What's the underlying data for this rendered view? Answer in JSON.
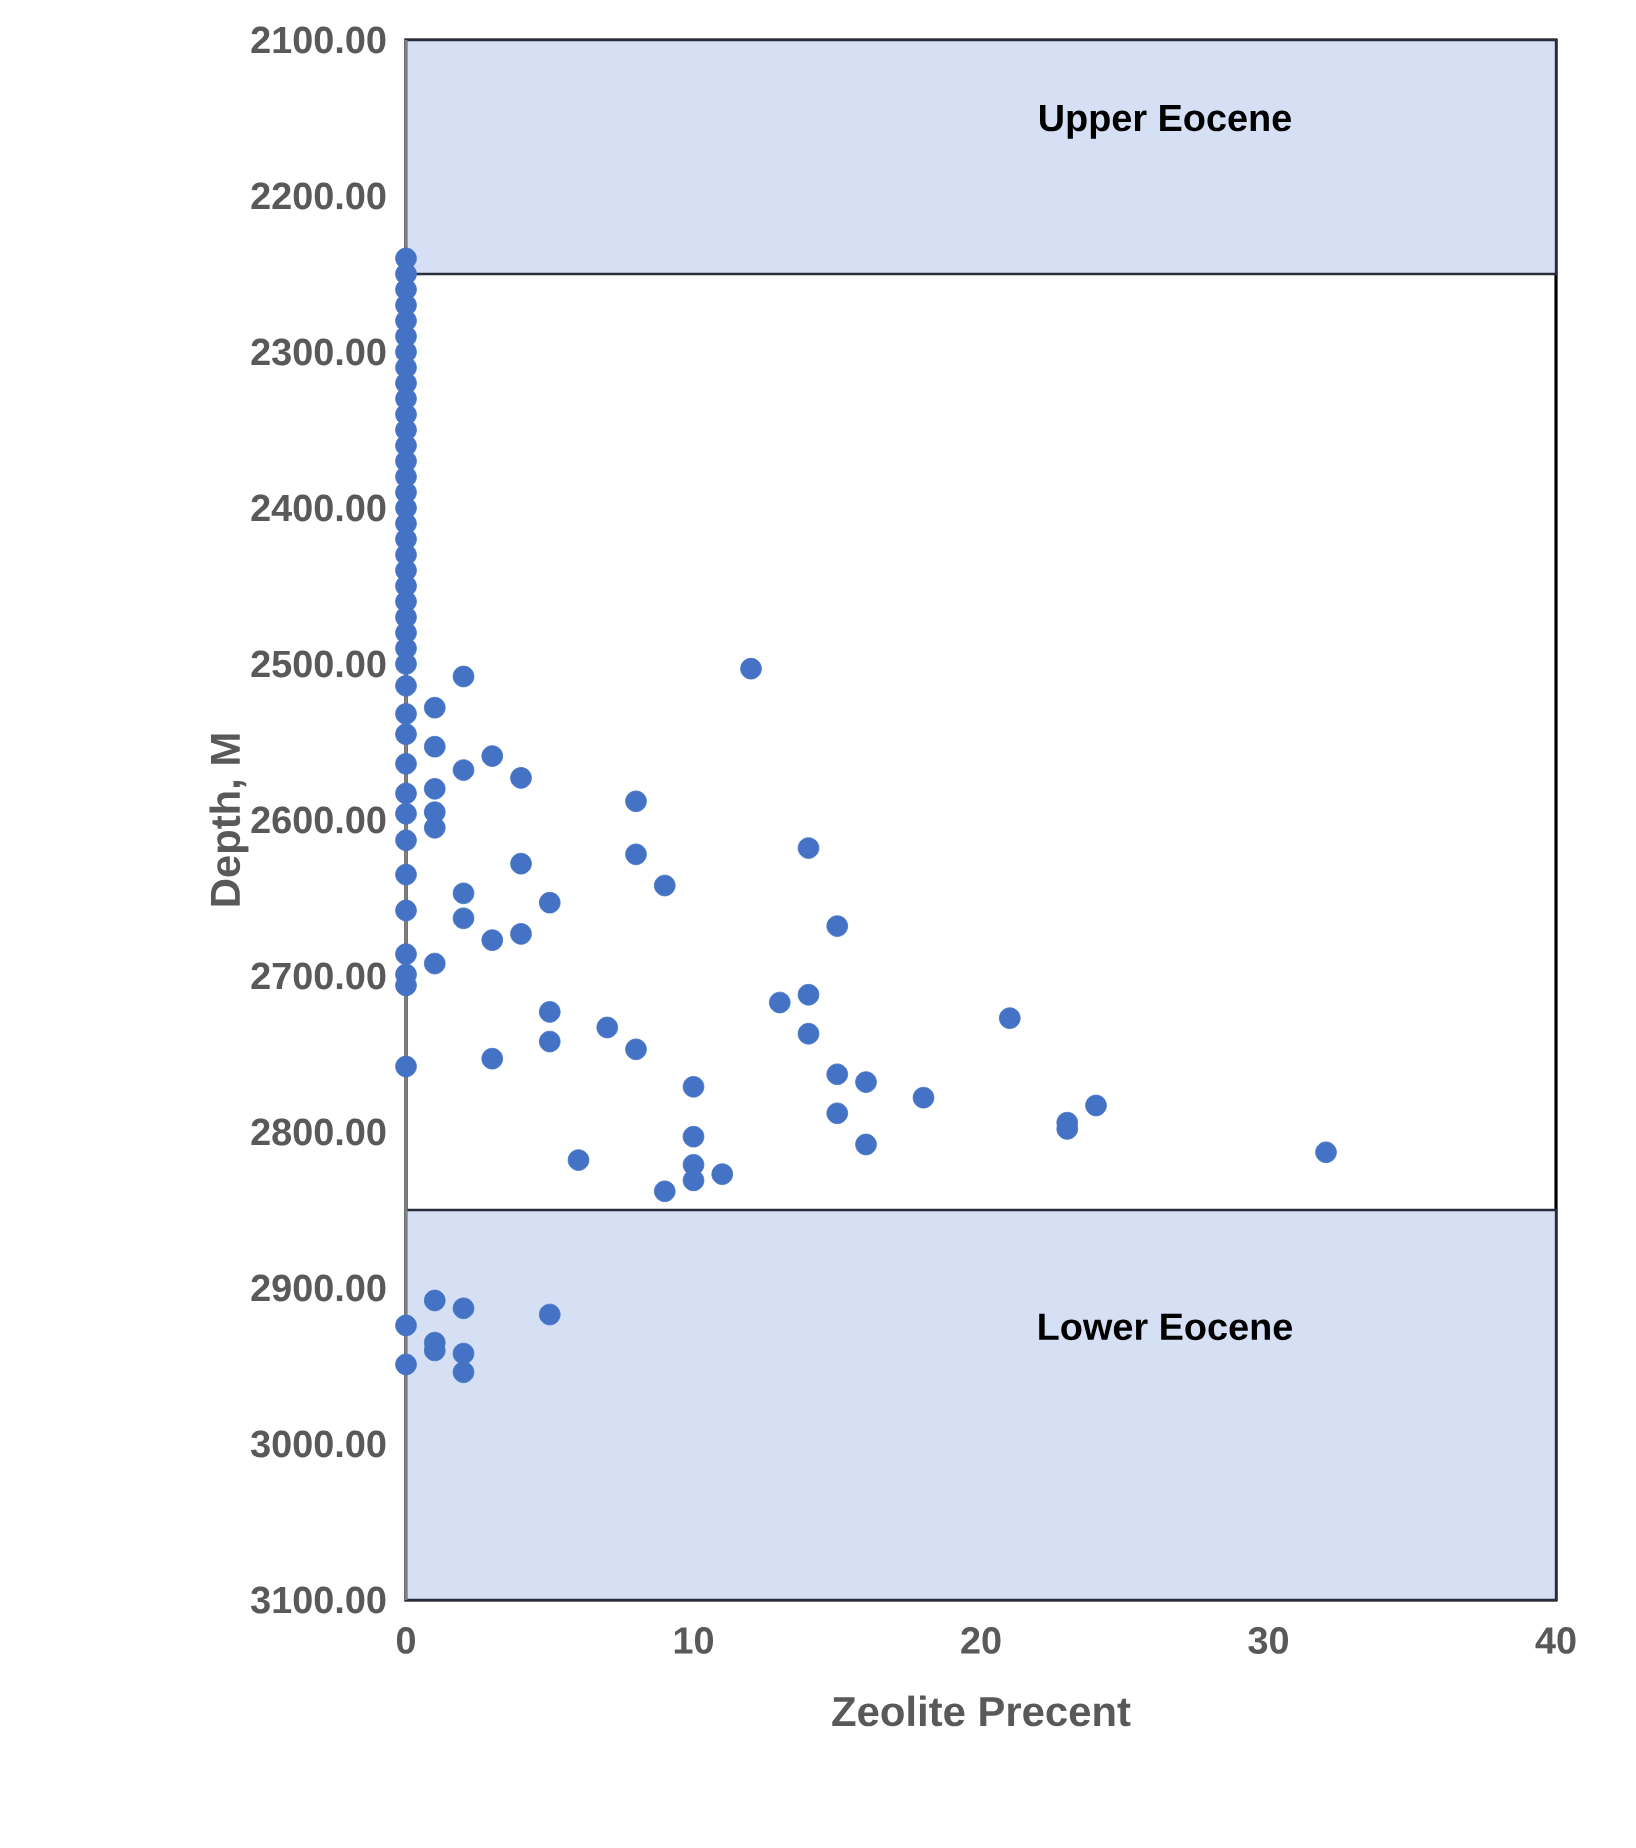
{
  "chart_data": {
    "type": "scatter",
    "xlabel": "Zeolite Precent",
    "ylabel": "Depth, M",
    "xlim": [
      0,
      40
    ],
    "xticks": [
      0,
      10,
      20,
      30,
      40
    ],
    "ylim": [
      3100,
      2100
    ],
    "yticks": [
      {
        "value": 2100,
        "label": "2100.00"
      },
      {
        "value": 2200,
        "label": "2200.00"
      },
      {
        "value": 2300,
        "label": "2300.00"
      },
      {
        "value": 2400,
        "label": "2400.00"
      },
      {
        "value": 2500,
        "label": "2500.00"
      },
      {
        "value": 2600,
        "label": "2600.00"
      },
      {
        "value": 2700,
        "label": "2700.00"
      },
      {
        "value": 2800,
        "label": "2800.00"
      },
      {
        "value": 2900,
        "label": "2900.00"
      },
      {
        "value": 3000,
        "label": "3000.00"
      },
      {
        "value": 3100,
        "label": "3100.00"
      }
    ],
    "marker": "circle",
    "grid": false,
    "bands": [
      {
        "axis": "y",
        "from": 2100,
        "to": 2250,
        "label": "Upper Eocene",
        "color": "#d6e0f5"
      },
      {
        "axis": "y",
        "from": 2850,
        "to": 3100,
        "label": "Lower Eocene",
        "color": "#d6e0f5"
      }
    ],
    "series": [
      {
        "color": "#4472c4",
        "x": [
          0,
          0,
          0,
          0,
          0,
          0,
          0,
          0,
          0,
          0,
          0,
          0,
          0,
          0,
          0,
          0,
          0,
          0,
          0,
          0,
          0,
          0,
          0,
          0,
          0,
          0,
          0,
          0,
          0,
          0,
          0,
          0,
          0,
          0,
          0,
          0,
          0,
          0,
          0,
          0,
          0,
          0,
          2,
          12,
          1,
          1,
          3,
          2,
          4,
          1,
          1,
          1,
          8,
          14,
          8,
          4,
          9,
          2,
          5,
          2,
          15,
          4,
          3,
          1,
          5,
          13,
          14,
          21,
          7,
          14,
          5,
          8,
          3,
          15,
          16,
          10,
          18,
          24,
          15,
          23,
          23,
          10,
          16,
          32,
          6,
          10,
          10,
          11,
          9,
          1,
          1,
          1,
          2,
          2,
          2,
          5
        ],
        "values": [
          2240,
          2250,
          2260,
          2270,
          2280,
          2290,
          2300,
          2310,
          2320,
          2330,
          2340,
          2350,
          2360,
          2370,
          2380,
          2390,
          2400,
          2410,
          2420,
          2430,
          2440,
          2450,
          2460,
          2470,
          2480,
          2490,
          2500,
          2514,
          2532,
          2545,
          2564,
          2583,
          2596,
          2613,
          2635,
          2658,
          2686,
          2699,
          2706,
          2758,
          2924,
          2949,
          2508,
          2503,
          2528,
          2553,
          2559,
          2568,
          2573,
          2580,
          2595,
          2605,
          2588,
          2618,
          2622,
          2628,
          2642,
          2647,
          2653,
          2663,
          2668,
          2673,
          2677,
          2692,
          2723,
          2717,
          2712,
          2727,
          2733,
          2737,
          2742,
          2747,
          2753,
          2763,
          2768,
          2771,
          2778,
          2783,
          2788,
          2794,
          2798,
          2803,
          2808,
          2813,
          2818,
          2821,
          2831,
          2827,
          2838,
          2908,
          2935,
          2940,
          2913,
          2942,
          2954,
          2917
        ]
      }
    ]
  }
}
